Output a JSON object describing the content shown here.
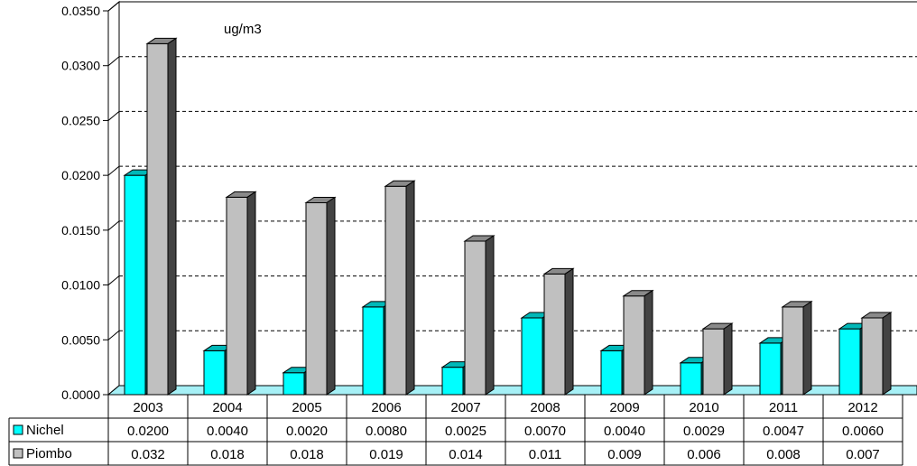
{
  "chart_data": {
    "type": "bar",
    "title": "ug/m3",
    "categories": [
      "2003",
      "2004",
      "2005",
      "2006",
      "2007",
      "2008",
      "2009",
      "2010",
      "2011",
      "2012"
    ],
    "series": [
      {
        "name": "Nichel",
        "color": "#00ffff",
        "values": [
          0.02,
          0.004,
          0.002,
          0.008,
          0.0025,
          0.007,
          0.004,
          0.0029,
          0.0047,
          0.006
        ],
        "table_labels": [
          "0.0200",
          "0.0040",
          "0.0020",
          "0.0080",
          "0.0025",
          "0.0070",
          "0.0040",
          "0.0029",
          "0.0047",
          "0.0060"
        ]
      },
      {
        "name": "Piombo",
        "color": "#c0c0c0",
        "values": [
          0.032,
          0.018,
          0.0175,
          0.019,
          0.014,
          0.011,
          0.009,
          0.006,
          0.008,
          0.007
        ],
        "table_labels": [
          "0.032",
          "0.018",
          "0.018",
          "0.019",
          "0.014",
          "0.011",
          "0.009",
          "0.006",
          "0.008",
          "0.007"
        ]
      }
    ],
    "ylim": [
      0,
      0.035
    ],
    "yticks": [
      "0.0000",
      "0.0050",
      "0.0100",
      "0.0150",
      "0.0200",
      "0.0250",
      "0.0300",
      "0.0350"
    ],
    "grid": true,
    "legend": "data-table"
  }
}
